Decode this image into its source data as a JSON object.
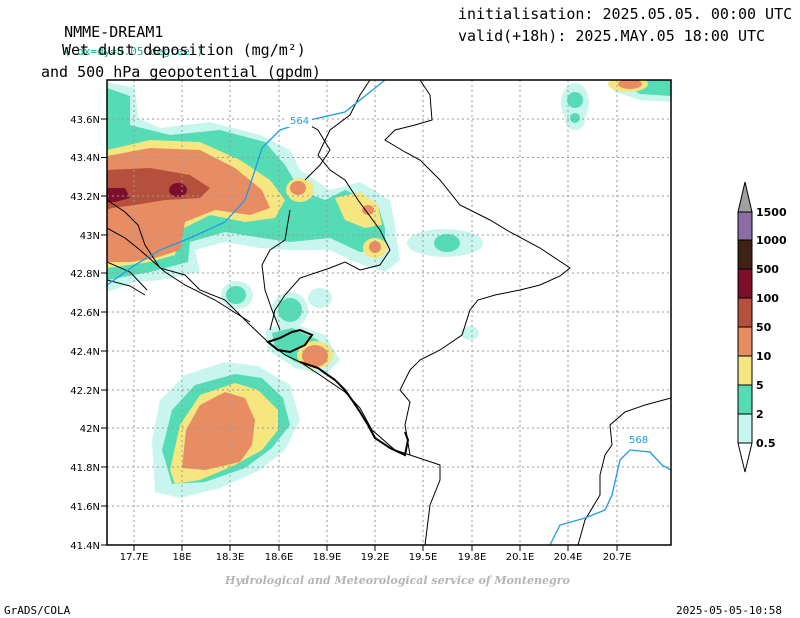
{
  "header": {
    "model": "NMME-DREAM1",
    "resolution": "( dx=dy=0.05 degree )",
    "init": "initialisation: 2025.05.05. 00:00 UTC",
    "valid": "valid(+18h): 2025.MAY.05 18:00 UTC",
    "field_line1": "Wet dust deposition (mg/m²)",
    "field_line2": "and 500 hPa geopotential (gpdm)"
  },
  "axes": {
    "lat_labels": [
      "43.6N",
      "43.4N",
      "43.2N",
      "43N",
      "42.8N",
      "42.6N",
      "42.4N",
      "42.2N",
      "42N",
      "41.8N",
      "41.6N",
      "41.4N"
    ],
    "lon_labels": [
      "17.7E",
      "18E",
      "18.3E",
      "18.6E",
      "18.9E",
      "19.2E",
      "19.5E",
      "19.8E",
      "20.1E",
      "20.4E",
      "20.7E"
    ]
  },
  "contours": {
    "labels": [
      "564",
      "568"
    ],
    "color": "#1e9be6"
  },
  "legend": {
    "levels": [
      "0.5",
      "2",
      "5",
      "10",
      "50",
      "100",
      "500",
      "1000",
      "1500"
    ],
    "colors": [
      "#c8f5ed",
      "#55dcb4",
      "#f6e680",
      "#e88c64",
      "#b4503c",
      "#7d0f2d",
      "#3c2314",
      "#8c6ea5",
      "#a0a0a0"
    ]
  },
  "credit": "Hydrological and Meteorological service of Montenegro",
  "footer": {
    "left": "GrADS/COLA",
    "right": "2025-05-05-10:58"
  }
}
